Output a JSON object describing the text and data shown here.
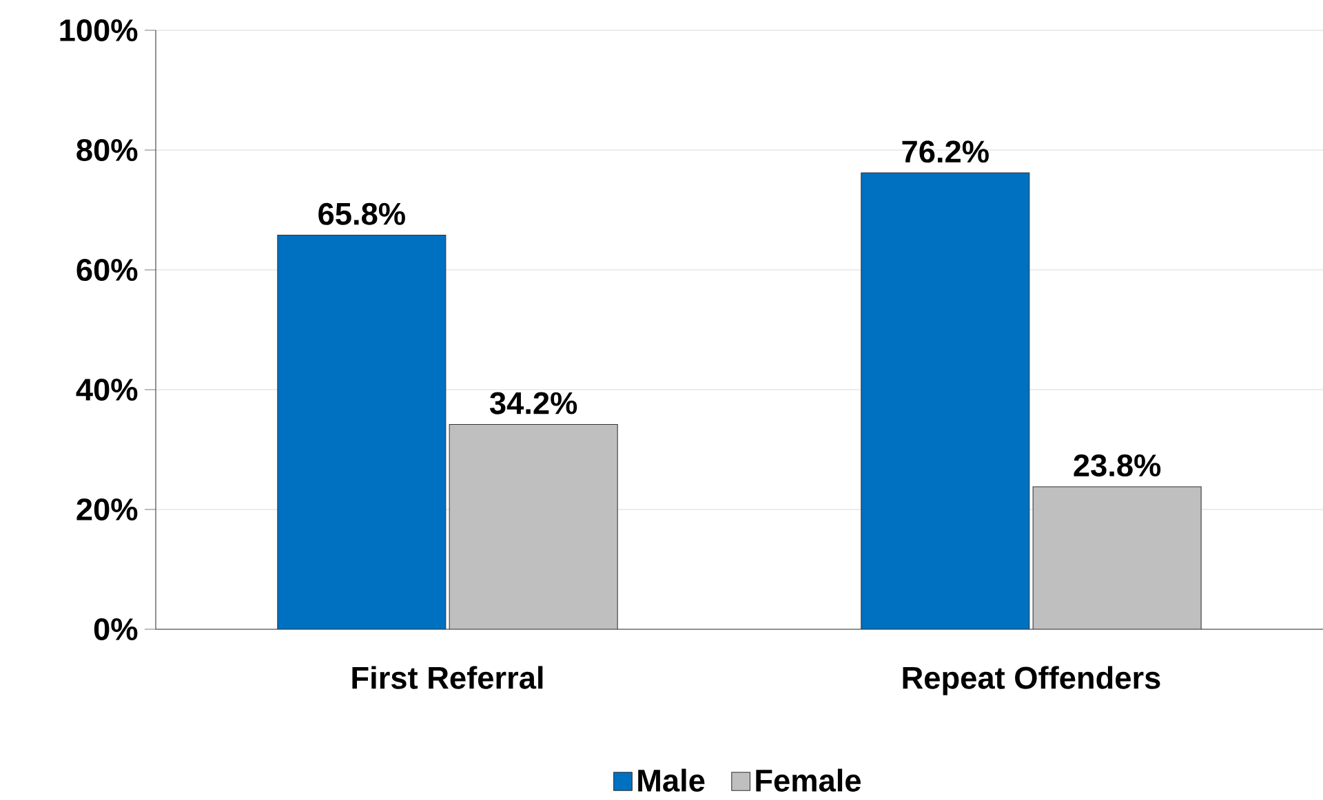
{
  "chart_data": {
    "type": "bar",
    "categories": [
      "First Referral",
      "Repeat  Offenders"
    ],
    "series": [
      {
        "name": "Male",
        "color": "#0070c0",
        "values": [
          65.8,
          76.2
        ],
        "value_labels": [
          "65.8%",
          "76.2%"
        ]
      },
      {
        "name": "Female",
        "color": "#bfbfbf",
        "values": [
          34.2,
          23.8
        ],
        "value_labels": [
          "34.2%",
          "23.8%"
        ]
      }
    ],
    "ylim": [
      0,
      100
    ],
    "yticks": [
      {
        "value": 0,
        "label": "0%"
      },
      {
        "value": 20,
        "label": "20%"
      },
      {
        "value": 40,
        "label": "40%"
      },
      {
        "value": 60,
        "label": "60%"
      },
      {
        "value": 80,
        "label": "80%"
      },
      {
        "value": 100,
        "label": "100%"
      }
    ],
    "grid": "y",
    "legend": "bottom"
  }
}
